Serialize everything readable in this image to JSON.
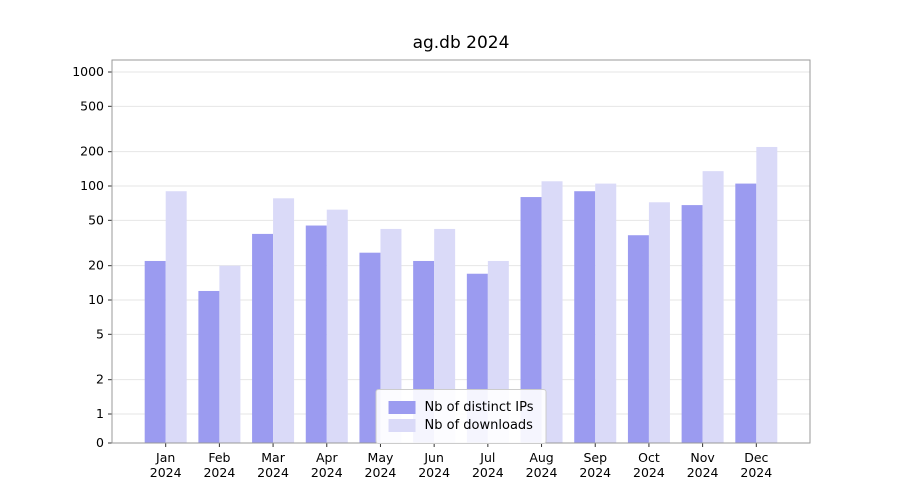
{
  "chart_data": {
    "type": "bar",
    "title": "ag.db 2024",
    "categories": [
      "Jan",
      "Feb",
      "Mar",
      "Apr",
      "May",
      "Jun",
      "Jul",
      "Aug",
      "Sep",
      "Oct",
      "Nov",
      "Dec"
    ],
    "year_label": "2024",
    "series": [
      {
        "name": "Nb of distinct IPs",
        "color": "#9b9bf0",
        "values": [
          22,
          12,
          38,
          45,
          26,
          22,
          17,
          80,
          90,
          37,
          68,
          105
        ]
      },
      {
        "name": "Nb of downloads",
        "color": "#dadaf8",
        "values": [
          90,
          20,
          78,
          62,
          42,
          42,
          22,
          110,
          105,
          72,
          135,
          220
        ]
      }
    ],
    "yticks": [
      0,
      1,
      2,
      5,
      10,
      20,
      50,
      100,
      200,
      500,
      1000
    ],
    "ylim": [
      0,
      1000
    ],
    "yscale": "symlog",
    "xlabel": "",
    "ylabel": "",
    "grid": "horizontal",
    "legend_position": "lower center",
    "colors": {
      "grid": "#e6e6e6",
      "spine": "#9a9a9a",
      "tick": "#333333",
      "text": "#000000"
    }
  }
}
